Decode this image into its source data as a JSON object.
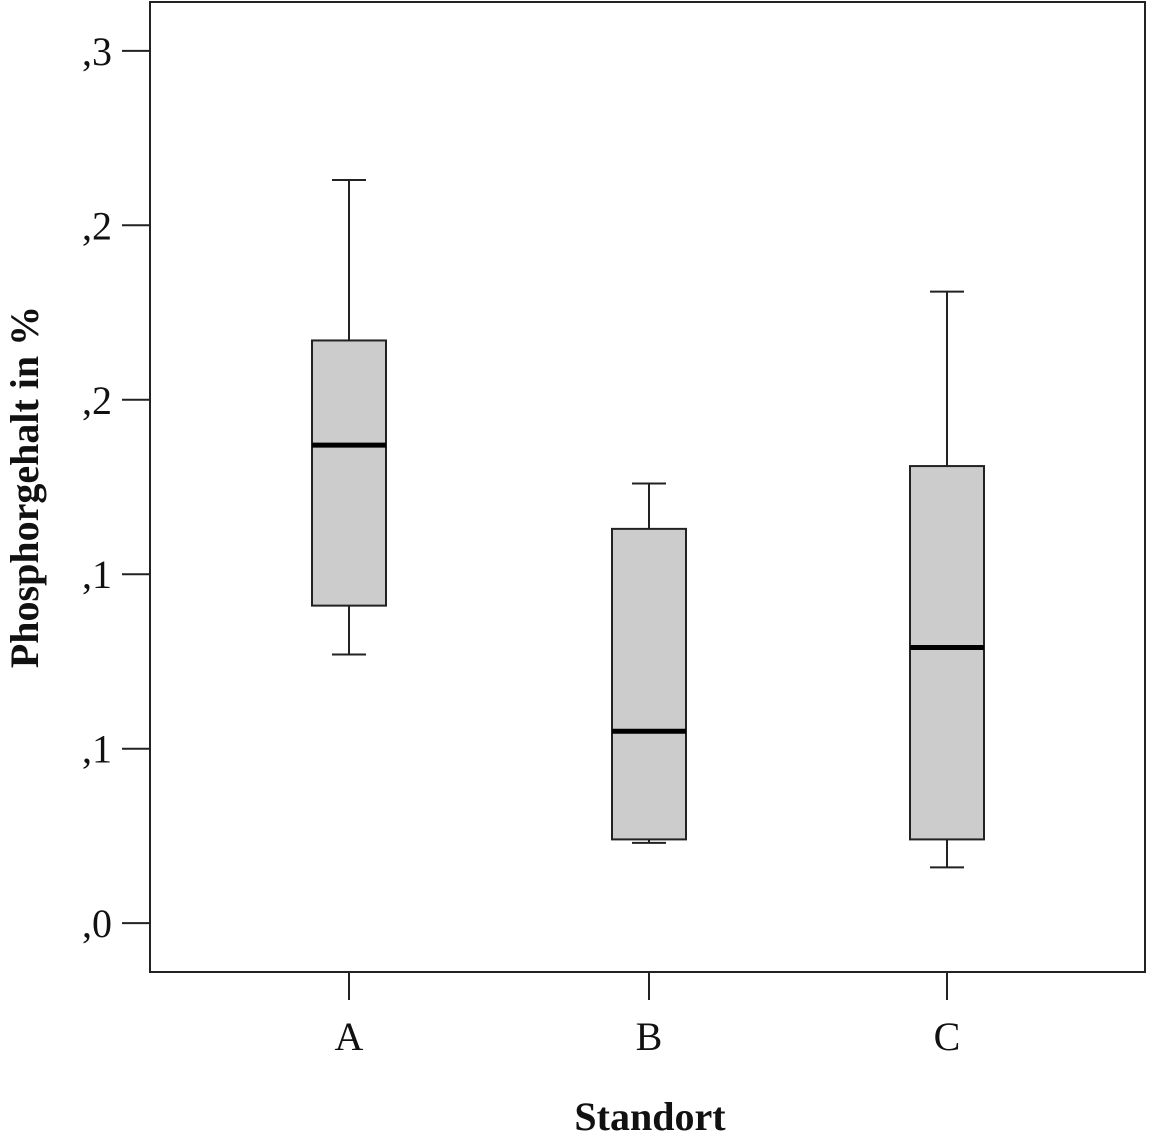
{
  "chart_data": {
    "type": "box",
    "title": "",
    "xlabel": "Standort",
    "ylabel": "Phosphorgehalt in %",
    "categories": [
      "A",
      "B",
      "C"
    ],
    "y_ticks": [
      {
        "value": 0.0,
        "label": ",0"
      },
      {
        "value": 0.05,
        "label": ",1"
      },
      {
        "value": 0.1,
        "label": ",1"
      },
      {
        "value": 0.15,
        "label": ",2"
      },
      {
        "value": 0.2,
        "label": ",2"
      },
      {
        "value": 0.25,
        "label": ",3"
      }
    ],
    "ylim": [
      -0.014,
      0.264
    ],
    "grid": false,
    "legend": "none",
    "colors": {
      "box_fill": "#cccccc",
      "stroke": "#222222",
      "median": "#000000"
    },
    "boxes": [
      {
        "category": "A",
        "min": 0.077,
        "q1": 0.091,
        "median": 0.137,
        "q3": 0.167,
        "max": 0.213
      },
      {
        "category": "B",
        "min": 0.023,
        "q1": 0.024,
        "median": 0.055,
        "q3": 0.113,
        "max": 0.126
      },
      {
        "category": "C",
        "min": 0.016,
        "q1": 0.024,
        "median": 0.079,
        "q3": 0.131,
        "max": 0.181
      }
    ]
  }
}
